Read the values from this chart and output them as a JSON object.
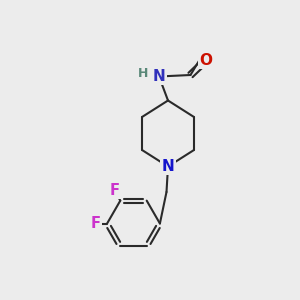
{
  "bg_color": "#ececec",
  "bond_color": "#2a2a2a",
  "bond_width": 1.5,
  "atom_colors": {
    "N_amide": "#3030bb",
    "N_pip": "#1515cc",
    "O": "#cc1100",
    "F": "#cc33cc",
    "H": "#5a8878",
    "C": "#2a2a2a"
  },
  "font_size_atom": 10.5,
  "fig_size": [
    3.0,
    3.0
  ],
  "dpi": 100
}
